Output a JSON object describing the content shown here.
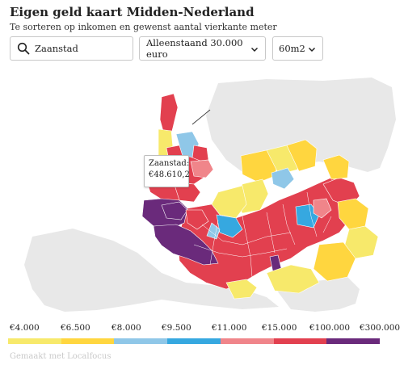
{
  "header": {
    "title": "Eigen geld kaart Midden-Nederland",
    "subtitle": "Te sorteren op inkomen en gewenst aantal vierkante meter"
  },
  "controls": {
    "search_value": "Zaanstad",
    "search_icon": "search-icon",
    "income_select": "Alleenstaand 30.000 euro",
    "size_select": "60m2",
    "dropdown_icon": "chevron-down-icon"
  },
  "tooltip": {
    "label": "Zaanstad:",
    "value": "€48.610,2"
  },
  "legend": {
    "labels": [
      "€4.000",
      "€6.500",
      "€8.000",
      "€9.500",
      "€11.000",
      "€15.000",
      "€100.000",
      "€300.000"
    ],
    "colors": [
      "#f7e96b",
      "#ffd63f",
      "#8fc7e8",
      "#36a8e0",
      "#f0858a",
      "#e2404f",
      "#6a2a7b"
    ]
  },
  "colors": {
    "background_land": "#e8e8e8",
    "yellow_light": "#f7e96b",
    "yellow": "#ffd63f",
    "blue_light": "#8fc7e8",
    "blue": "#36a8e0",
    "pink": "#f0858a",
    "red": "#e2404f",
    "purple": "#6a2a7b"
  },
  "footer": {
    "credit": "Gemaakt met Localfocus"
  }
}
